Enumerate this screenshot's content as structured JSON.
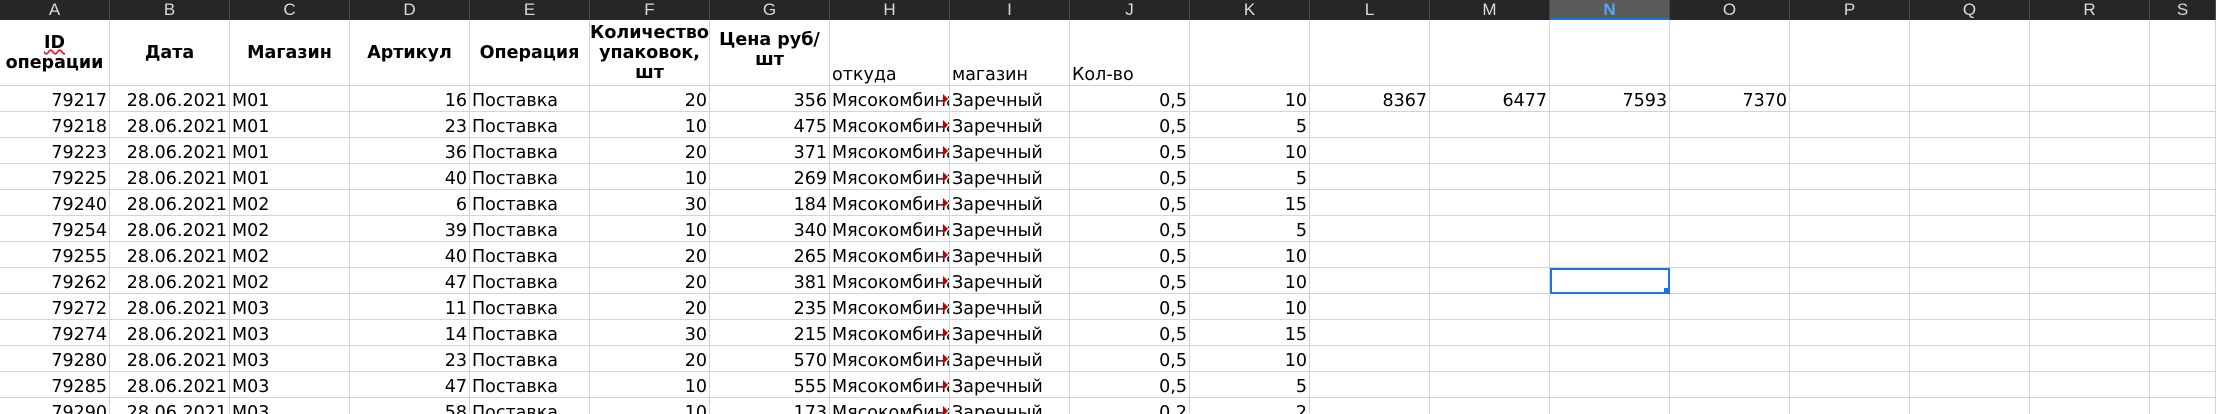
{
  "columns": [
    "A",
    "B",
    "C",
    "D",
    "E",
    "F",
    "G",
    "H",
    "I",
    "J",
    "K",
    "L",
    "M",
    "N",
    "O",
    "P",
    "Q",
    "R",
    "S"
  ],
  "selected_column": "N",
  "header_row": {
    "id_line1": "ID",
    "id_line2": "операции",
    "date": "Дата",
    "store": "Магазин",
    "article": "Артикул",
    "operation": "Операция",
    "qty": "Количество упаковок, шт",
    "price": "Цена руб/шт",
    "from": "откуда",
    "shop": "магазин",
    "amount": "Кол-во"
  },
  "extra_values": [
    "8367",
    "6477",
    "7593",
    "7370"
  ],
  "rows": [
    [
      "79217",
      "28.06.2021",
      "M01",
      "16",
      "Поставка",
      "20",
      "356",
      "Мясокомбинат",
      "Заречный",
      "0,5",
      "10"
    ],
    [
      "79218",
      "28.06.2021",
      "M01",
      "23",
      "Поставка",
      "10",
      "475",
      "Мясокомбинат",
      "Заречный",
      "0,5",
      "5"
    ],
    [
      "79223",
      "28.06.2021",
      "M01",
      "36",
      "Поставка",
      "20",
      "371",
      "Мясокомбинат",
      "Заречный",
      "0,5",
      "10"
    ],
    [
      "79225",
      "28.06.2021",
      "M01",
      "40",
      "Поставка",
      "10",
      "269",
      "Мясокомбинат",
      "Заречный",
      "0,5",
      "5"
    ],
    [
      "79240",
      "28.06.2021",
      "M02",
      "6",
      "Поставка",
      "30",
      "184",
      "Мясокомбинат",
      "Заречный",
      "0,5",
      "15"
    ],
    [
      "79254",
      "28.06.2021",
      "M02",
      "39",
      "Поставка",
      "10",
      "340",
      "Мясокомбинат",
      "Заречный",
      "0,5",
      "5"
    ],
    [
      "79255",
      "28.06.2021",
      "M02",
      "40",
      "Поставка",
      "20",
      "265",
      "Мясокомбинат",
      "Заречный",
      "0,5",
      "10"
    ],
    [
      "79262",
      "28.06.2021",
      "M02",
      "47",
      "Поставка",
      "20",
      "381",
      "Мясокомбинат",
      "Заречный",
      "0,5",
      "10"
    ],
    [
      "79272",
      "28.06.2021",
      "M03",
      "11",
      "Поставка",
      "20",
      "235",
      "Мясокомбинат",
      "Заречный",
      "0,5",
      "10"
    ],
    [
      "79274",
      "28.06.2021",
      "M03",
      "14",
      "Поставка",
      "30",
      "215",
      "Мясокомбинат",
      "Заречный",
      "0,5",
      "15"
    ],
    [
      "79280",
      "28.06.2021",
      "M03",
      "23",
      "Поставка",
      "20",
      "570",
      "Мясокомбинат",
      "Заречный",
      "0,5",
      "10"
    ],
    [
      "79285",
      "28.06.2021",
      "M03",
      "47",
      "Поставка",
      "10",
      "555",
      "Мясокомбинат",
      "Заречный",
      "0,5",
      "5"
    ],
    [
      "79290",
      "28.06.2021",
      "M03",
      "58",
      "Поставка",
      "10",
      "173",
      "Мясокомбинат",
      "Заречный",
      "0,2",
      "2"
    ]
  ]
}
